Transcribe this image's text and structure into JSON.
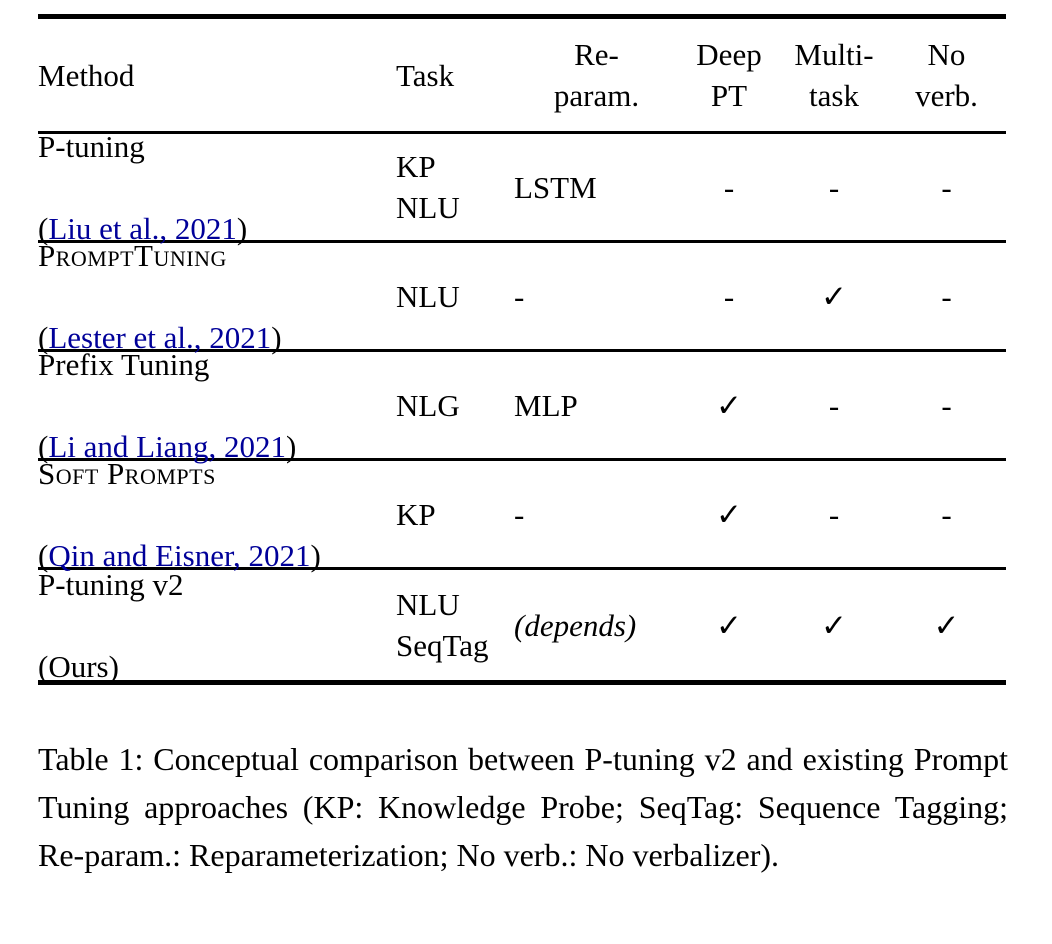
{
  "colors": {
    "citation": "#000099"
  },
  "table": {
    "headers": [
      "Method",
      "Task",
      "Re-\nparam.",
      "Deep\nPT",
      "Multi-\ntask",
      "No\nverb."
    ],
    "rows": [
      {
        "name": "P-tuning",
        "cite_open": "(",
        "cite": "Liu et al., 2021",
        "cite_close": ")",
        "task": "KP\nNLU",
        "reparam": "LSTM",
        "deep_pt": "-",
        "multi_task": "-",
        "no_verb": "-"
      },
      {
        "name": "PromptTuning",
        "cite_open": "(",
        "cite": "Lester et al., 2021",
        "cite_close": ")",
        "task": "NLU",
        "reparam": "-",
        "deep_pt": "-",
        "multi_task": "✓",
        "no_verb": "-"
      },
      {
        "name": "Prefix Tuning",
        "cite_open": "(",
        "cite": "Li and Liang, 2021",
        "cite_close": ")",
        "task": "NLG",
        "reparam": "MLP",
        "deep_pt": "✓",
        "multi_task": "-",
        "no_verb": "-"
      },
      {
        "name": "Soft Prompts",
        "cite_open": "(",
        "cite": "Qin and Eisner, 2021",
        "cite_close": ")",
        "task": "KP",
        "reparam": "-",
        "deep_pt": "✓",
        "multi_task": "-",
        "no_verb": "-"
      },
      {
        "name": "P-tuning v2",
        "cite_full": "(Ours)",
        "task": "NLU\nSeqTag",
        "reparam": "(depends)",
        "deep_pt": "✓",
        "multi_task": "✓",
        "no_verb": "✓"
      }
    ]
  },
  "caption": "Table 1: Conceptual comparison between P-tuning v2 and existing Prompt Tuning approaches (KP: Knowledge Probe; SeqTag: Sequence Tagging; Re-param.: Reparameterization; No verb.: No verbalizer)."
}
